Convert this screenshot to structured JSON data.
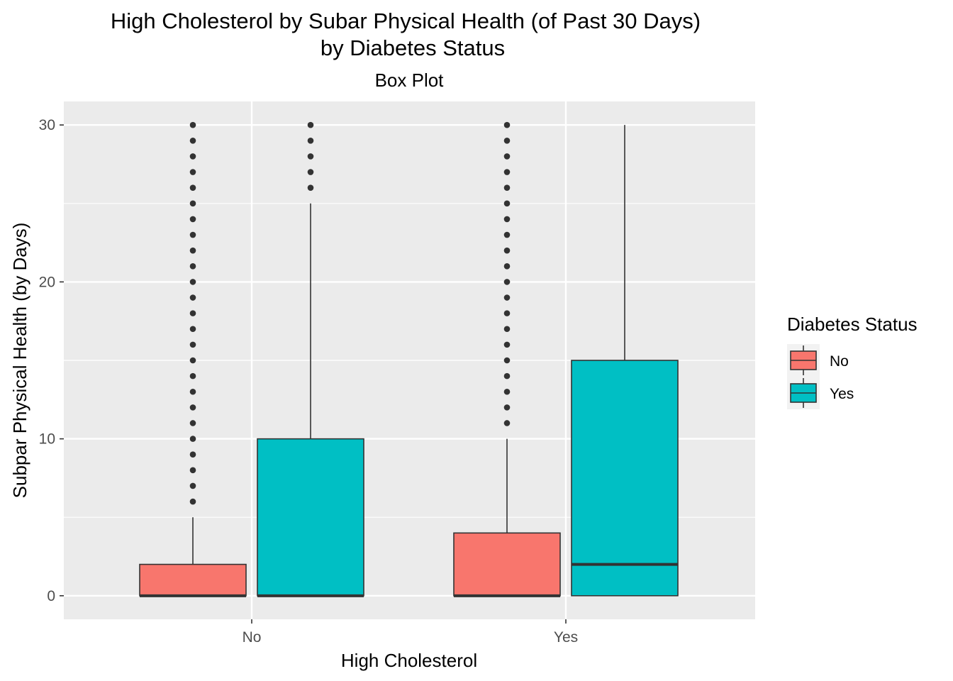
{
  "chart_data": {
    "type": "boxplot",
    "title_line1": "High Cholesterol by Subar Physical Health (of Past 30 Days)",
    "title_line2": "by Diabetes Status",
    "subtitle": "Box Plot",
    "xlabel": "High Cholesterol",
    "ylabel": "Subpar Physical Health (by Days)",
    "categories": [
      "No",
      "Yes"
    ],
    "ylim": [
      -1.5,
      31.5
    ],
    "yticks": [
      0,
      10,
      20,
      30
    ],
    "grid": true,
    "legend_position": "right",
    "legend": {
      "title": "Diabetes Status",
      "entries": [
        {
          "label": "No",
          "color": "#F8766D"
        },
        {
          "label": "Yes",
          "color": "#00BFC4"
        }
      ]
    },
    "series": [
      {
        "name": "No",
        "color": "#F8766D",
        "boxes": [
          {
            "category": "No",
            "min": 0,
            "q1": 0,
            "median": 0,
            "q3": 2,
            "max": 5,
            "outliers": [
              6,
              7,
              8,
              9,
              10,
              11,
              12,
              13,
              14,
              15,
              16,
              17,
              18,
              19,
              20,
              21,
              22,
              23,
              24,
              25,
              26,
              27,
              28,
              29,
              30
            ]
          },
          {
            "category": "Yes",
            "min": 0,
            "q1": 0,
            "median": 0,
            "q3": 4,
            "max": 10,
            "outliers": [
              11,
              12,
              13,
              14,
              15,
              16,
              17,
              18,
              19,
              20,
              21,
              22,
              23,
              24,
              25,
              26,
              27,
              28,
              29,
              30
            ]
          }
        ]
      },
      {
        "name": "Yes",
        "color": "#00BFC4",
        "boxes": [
          {
            "category": "No",
            "min": 0,
            "q1": 0,
            "median": 0,
            "q3": 10,
            "max": 25,
            "outliers": [
              26,
              27,
              28,
              29,
              30
            ]
          },
          {
            "category": "Yes",
            "min": 0,
            "q1": 0,
            "median": 2,
            "q3": 15,
            "max": 30,
            "outliers": []
          }
        ]
      }
    ]
  }
}
